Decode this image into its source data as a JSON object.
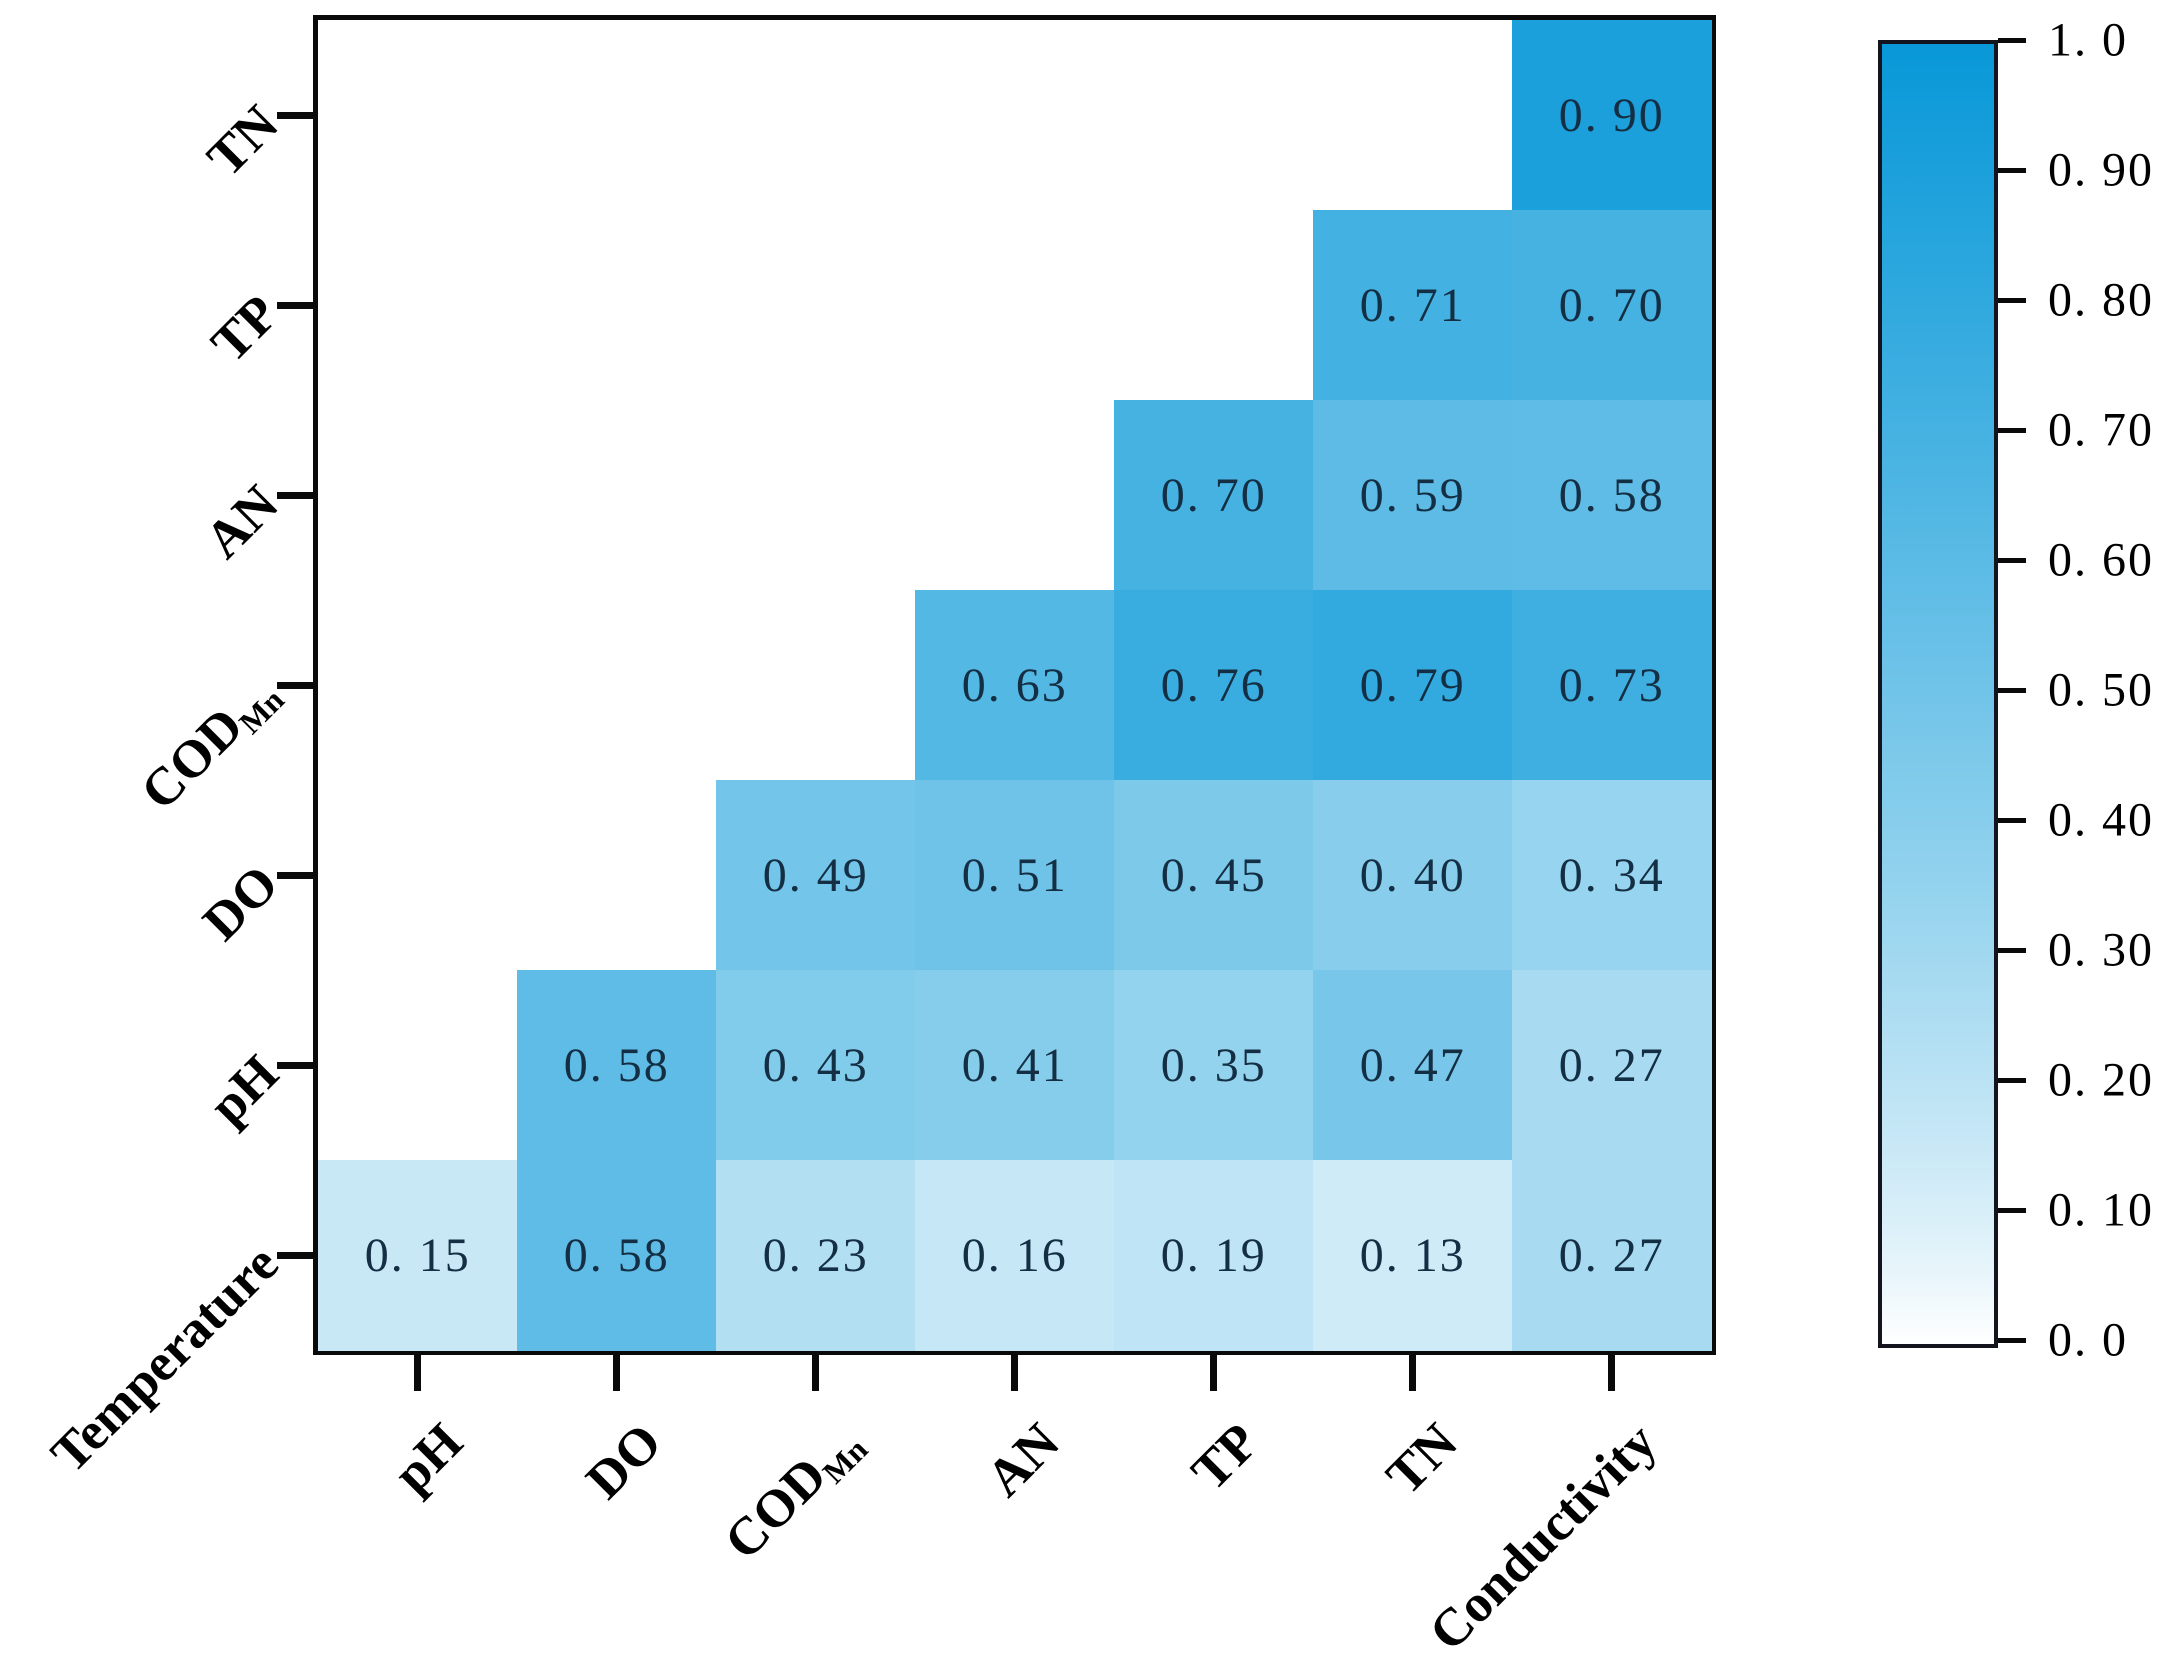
{
  "chart_data": {
    "type": "heatmap",
    "variant": "upper-right-triangle-correlation-matrix",
    "title": "",
    "xlabel": "",
    "ylabel": "",
    "grid": false,
    "legend": false,
    "x_labels": [
      {
        "text": "pH",
        "sub": ""
      },
      {
        "text": "DO",
        "sub": ""
      },
      {
        "text": "COD",
        "sub": "Mn"
      },
      {
        "text": "AN",
        "sub": ""
      },
      {
        "text": "TP",
        "sub": ""
      },
      {
        "text": "TN",
        "sub": ""
      },
      {
        "text": "Conductivity",
        "sub": ""
      }
    ],
    "y_labels_top_to_bottom": [
      {
        "text": "TN",
        "sub": ""
      },
      {
        "text": "TP",
        "sub": ""
      },
      {
        "text": "AN",
        "sub": ""
      },
      {
        "text": "COD",
        "sub": "Mn"
      },
      {
        "text": "DO",
        "sub": ""
      },
      {
        "text": "pH",
        "sub": ""
      },
      {
        "text": "Temperature",
        "sub": ""
      }
    ],
    "values": [
      [
        null,
        null,
        null,
        null,
        null,
        null,
        0.9
      ],
      [
        null,
        null,
        null,
        null,
        null,
        0.71,
        0.7
      ],
      [
        null,
        null,
        null,
        null,
        0.7,
        0.59,
        0.58
      ],
      [
        null,
        null,
        null,
        0.63,
        0.76,
        0.79,
        0.73
      ],
      [
        null,
        null,
        0.49,
        0.51,
        0.45,
        0.4,
        0.34
      ],
      [
        null,
        0.58,
        0.43,
        0.41,
        0.35,
        0.47,
        0.27
      ],
      [
        0.15,
        0.58,
        0.23,
        0.16,
        0.19,
        0.13,
        0.27
      ]
    ],
    "cell_labels": [
      [
        null,
        null,
        null,
        null,
        null,
        null,
        "0. 90"
      ],
      [
        null,
        null,
        null,
        null,
        null,
        "0. 71",
        "0. 70"
      ],
      [
        null,
        null,
        null,
        null,
        "0. 70",
        "0. 59",
        "0. 58"
      ],
      [
        null,
        null,
        null,
        "0. 63",
        "0. 76",
        "0. 79",
        "0. 73"
      ],
      [
        null,
        null,
        "0. 49",
        "0. 51",
        "0. 45",
        "0. 40",
        "0. 34"
      ],
      [
        null,
        "0. 58",
        "0. 43",
        "0. 41",
        "0. 35",
        "0. 47",
        "0. 27"
      ],
      [
        "0. 15",
        "0. 58",
        "0. 23",
        "0. 16",
        "0. 19",
        "0. 13",
        "0. 27"
      ]
    ],
    "colormap": {
      "low": "#FFFFFF",
      "high": "#0898D8",
      "gamma": 0.8
    },
    "colors": {
      "cell_text": "#142F44",
      "axis_text": "#000000",
      "plot_border": "#0A0A0A"
    },
    "colorbar": {
      "min": 0.0,
      "max": 1.0,
      "tick_values": [
        1.0,
        0.9,
        0.8,
        0.7,
        0.6,
        0.5,
        0.4,
        0.3,
        0.2,
        0.1,
        0.0
      ],
      "tick_labels": [
        "1. 0",
        "0. 90",
        "0. 80",
        "0. 70",
        "0. 60",
        "0. 50",
        "0. 40",
        "0. 30",
        "0. 20",
        "0. 10",
        "0. 0"
      ],
      "position": "right"
    }
  }
}
